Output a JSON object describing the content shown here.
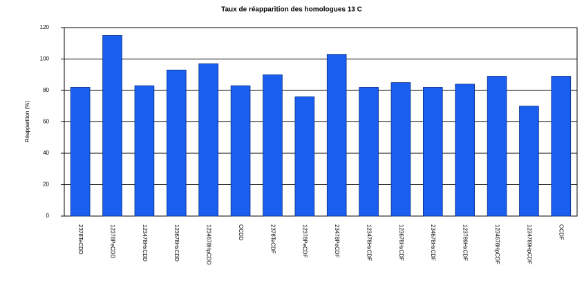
{
  "chart_data": {
    "type": "bar",
    "title": "Taux de réapparition des homologues 13 C",
    "y_label": "Réapparition (%)",
    "categories": [
      "2378TeCDD",
      "12378PeCDD",
      "123478HxCDD",
      "123678HxCDD",
      "1234678HpCDD",
      "OCDD",
      "2378TeCDF",
      "12378PeCDF",
      "23478PeCDF",
      "123478HxCDF",
      "123678HxCDF",
      "234678HxCDF",
      "123789HxCDF",
      "1234678HpCDF",
      "1234789HpCDF",
      "OCDF"
    ],
    "values": [
      82,
      115,
      83,
      93,
      97,
      83,
      90,
      76,
      103,
      82,
      85,
      82,
      84,
      89,
      70,
      89
    ],
    "color": "#1a5ef0",
    "ylim": [
      0,
      120
    ],
    "yticks": [
      0,
      20,
      40,
      60,
      80,
      100,
      120
    ],
    "grid": true
  }
}
